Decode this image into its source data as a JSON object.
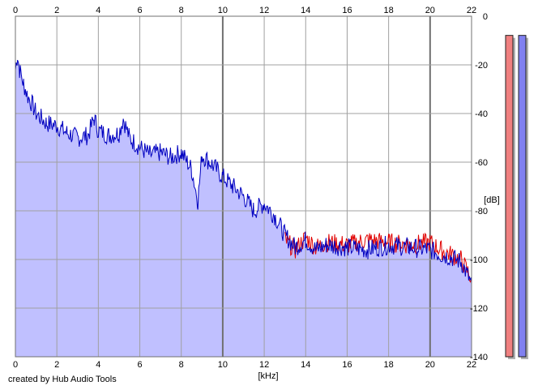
{
  "credit": "created by Hub Audio Tools",
  "chart_data": {
    "type": "area",
    "xlabel": "[kHz]",
    "ylabel": "[dB]",
    "xlim": [
      0,
      22
    ],
    "ylim": [
      -140,
      0
    ],
    "x_ticks": [
      0,
      2,
      4,
      6,
      8,
      10,
      12,
      14,
      16,
      18,
      20,
      22
    ],
    "y_ticks": [
      0,
      -20,
      -40,
      -60,
      -80,
      -100,
      -120,
      -140
    ],
    "y_tick_labels": [
      "0",
      "-20",
      "-40",
      "-60",
      "-80",
      "-100",
      "-120",
      "-140"
    ],
    "grid": true,
    "colors": {
      "fill": "#c0c0ff",
      "blue_line": "#0000c0",
      "red_line": "#e00000",
      "grid": "#a0a0a0",
      "grid_major": "#707070",
      "meter_left": "#f08080",
      "meter_right": "#8080f0"
    },
    "series": [
      {
        "color": "blue",
        "x": [
          0,
          0.1,
          0.2,
          0.4,
          0.6,
          0.8,
          1,
          1.5,
          2,
          2.5,
          3,
          3.5,
          3.8,
          4,
          4.5,
          5,
          5.2,
          5.5,
          6,
          6.5,
          7,
          7.5,
          8,
          8.5,
          8.8,
          9,
          9.5,
          10,
          10.5,
          11,
          11.5,
          12,
          12.5,
          13,
          13.5,
          14,
          14.5,
          15,
          16,
          17,
          18,
          19,
          20,
          20.5,
          21,
          21.5,
          22
        ],
        "y": [
          -22,
          -16,
          -22,
          -28,
          -33,
          -36,
          -40,
          -44,
          -45,
          -48,
          -50,
          -49,
          -42,
          -47,
          -49,
          -48,
          -42,
          -50,
          -54,
          -57,
          -56,
          -58,
          -56,
          -63,
          -76,
          -57,
          -61,
          -66,
          -70,
          -74,
          -80,
          -77,
          -82,
          -90,
          -95,
          -92,
          -96,
          -94,
          -95,
          -96,
          -94,
          -95,
          -96,
          -98,
          -99,
          -101,
          -110
        ]
      },
      {
        "color": "red",
        "x": [
          13,
          13.5,
          14,
          14.5,
          15,
          16,
          17,
          18,
          19,
          20,
          20.5,
          21,
          21.5,
          22
        ],
        "y": [
          -92,
          -96,
          -91,
          -95,
          -93,
          -94,
          -92,
          -93,
          -94,
          -93,
          -96,
          -98,
          -100,
          -108
        ]
      }
    ],
    "meters": [
      {
        "channel": "left",
        "level_db": -4
      },
      {
        "channel": "right",
        "level_db": -4
      }
    ]
  }
}
